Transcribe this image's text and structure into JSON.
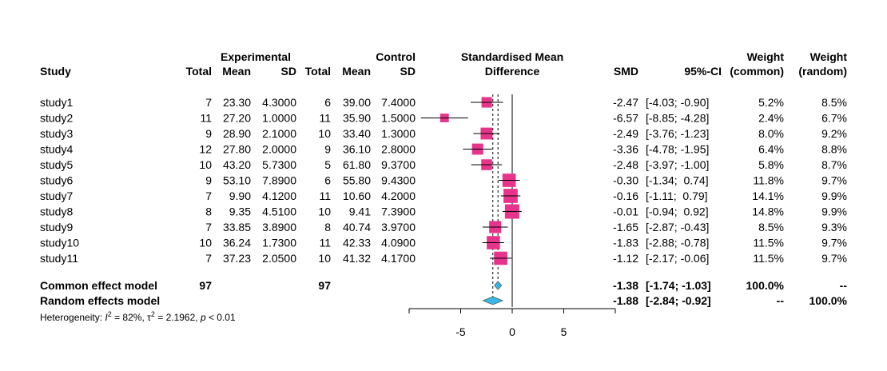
{
  "chart_data": {
    "type": "forest",
    "headers": {
      "study": "Study",
      "experimental": "Experimental",
      "control": "Control",
      "total": "Total",
      "mean": "Mean",
      "sd": "SD",
      "effect_line1": "Standardised Mean",
      "effect_line2": "Difference",
      "smd": "SMD",
      "ci": "95%-CI",
      "weight": "Weight",
      "weight_common": "(common)",
      "weight_random": "(random)"
    },
    "studies": [
      {
        "name": "study1",
        "exp_total": "7",
        "exp_mean": "23.30",
        "exp_sd": "4.3000",
        "ctl_total": "6",
        "ctl_mean": "39.00",
        "ctl_sd": "7.4000",
        "smd": -2.47,
        "lower": -4.03,
        "upper": -0.9,
        "ci_text": "[-4.03; -0.90]",
        "smd_text": "-2.47",
        "w_common": "5.2%",
        "w_random": "8.5%",
        "w_common_val": 5.2
      },
      {
        "name": "study2",
        "exp_total": "11",
        "exp_mean": "27.20",
        "exp_sd": "1.0000",
        "ctl_total": "11",
        "ctl_mean": "35.90",
        "ctl_sd": "1.5000",
        "smd": -6.57,
        "lower": -8.85,
        "upper": -4.28,
        "ci_text": "[-8.85; -4.28]",
        "smd_text": "-6.57",
        "w_common": "2.4%",
        "w_random": "6.7%",
        "w_common_val": 2.4
      },
      {
        "name": "study3",
        "exp_total": "9",
        "exp_mean": "28.90",
        "exp_sd": "2.1000",
        "ctl_total": "10",
        "ctl_mean": "33.40",
        "ctl_sd": "1.3000",
        "smd": -2.49,
        "lower": -3.76,
        "upper": -1.23,
        "ci_text": "[-3.76; -1.23]",
        "smd_text": "-2.49",
        "w_common": "8.0%",
        "w_random": "9.2%",
        "w_common_val": 8.0
      },
      {
        "name": "study4",
        "exp_total": "12",
        "exp_mean": "27.80",
        "exp_sd": "2.0000",
        "ctl_total": "9",
        "ctl_mean": "36.10",
        "ctl_sd": "2.8000",
        "smd": -3.36,
        "lower": -4.78,
        "upper": -1.95,
        "ci_text": "[-4.78; -1.95]",
        "smd_text": "-3.36",
        "w_common": "6.4%",
        "w_random": "8.8%",
        "w_common_val": 6.4
      },
      {
        "name": "study5",
        "exp_total": "10",
        "exp_mean": "43.20",
        "exp_sd": "5.7300",
        "ctl_total": "5",
        "ctl_mean": "61.80",
        "ctl_sd": "9.3700",
        "smd": -2.48,
        "lower": -3.97,
        "upper": -1.0,
        "ci_text": "[-3.97; -1.00]",
        "smd_text": "-2.48",
        "w_common": "5.8%",
        "w_random": "8.7%",
        "w_common_val": 5.8
      },
      {
        "name": "study6",
        "exp_total": "9",
        "exp_mean": "53.10",
        "exp_sd": "7.8900",
        "ctl_total": "6",
        "ctl_mean": "55.80",
        "ctl_sd": "9.4300",
        "smd": -0.3,
        "lower": -1.34,
        "upper": 0.74,
        "ci_text": "[-1.34;  0.74]",
        "smd_text": "-0.30",
        "w_common": "11.8%",
        "w_random": "9.7%",
        "w_common_val": 11.8
      },
      {
        "name": "study7",
        "exp_total": "7",
        "exp_mean": "9.90",
        "exp_sd": "4.1200",
        "ctl_total": "11",
        "ctl_mean": "10.60",
        "ctl_sd": "4.2000",
        "smd": -0.16,
        "lower": -1.11,
        "upper": 0.79,
        "ci_text": "[-1.11;  0.79]",
        "smd_text": "-0.16",
        "w_common": "14.1%",
        "w_random": "9.9%",
        "w_common_val": 14.1
      },
      {
        "name": "study8",
        "exp_total": "8",
        "exp_mean": "9.35",
        "exp_sd": "4.5100",
        "ctl_total": "10",
        "ctl_mean": "9.41",
        "ctl_sd": "7.3900",
        "smd": -0.01,
        "lower": -0.94,
        "upper": 0.92,
        "ci_text": "[-0.94;  0.92]",
        "smd_text": "-0.01",
        "w_common": "14.8%",
        "w_random": "9.9%",
        "w_common_val": 14.8
      },
      {
        "name": "study9",
        "exp_total": "7",
        "exp_mean": "33.85",
        "exp_sd": "3.8900",
        "ctl_total": "8",
        "ctl_mean": "40.74",
        "ctl_sd": "3.9700",
        "smd": -1.65,
        "lower": -2.87,
        "upper": -0.43,
        "ci_text": "[-2.87; -0.43]",
        "smd_text": "-1.65",
        "w_common": "8.5%",
        "w_random": "9.3%",
        "w_common_val": 8.5
      },
      {
        "name": "study10",
        "exp_total": "10",
        "exp_mean": "36.24",
        "exp_sd": "1.7300",
        "ctl_total": "11",
        "ctl_mean": "42.33",
        "ctl_sd": "4.0900",
        "smd": -1.83,
        "lower": -2.88,
        "upper": -0.78,
        "ci_text": "[-2.88; -0.78]",
        "smd_text": "-1.83",
        "w_common": "11.5%",
        "w_random": "9.7%",
        "w_common_val": 11.5
      },
      {
        "name": "study11",
        "exp_total": "7",
        "exp_mean": "37.23",
        "exp_sd": "2.0500",
        "ctl_total": "10",
        "ctl_mean": "41.32",
        "ctl_sd": "4.1700",
        "smd": -1.12,
        "lower": -2.17,
        "upper": -0.06,
        "ci_text": "[-2.17; -0.06]",
        "smd_text": "-1.12",
        "w_common": "11.5%",
        "w_random": "9.7%",
        "w_common_val": 11.5
      }
    ],
    "pooled": [
      {
        "model": "Common effect model",
        "exp_total": "97",
        "ctl_total": "97",
        "smd": -1.38,
        "lower": -1.74,
        "upper": -1.03,
        "smd_text": "-1.38",
        "ci_text": "[-1.74; -1.03]",
        "w_common": "100.0%",
        "w_random": "--",
        "color": "#36b9e6"
      },
      {
        "model": "Random effects model",
        "exp_total": "",
        "ctl_total": "",
        "smd": -1.88,
        "lower": -2.84,
        "upper": -0.92,
        "smd_text": "-1.88",
        "ci_text": "[-2.84; -0.92]",
        "w_common": "--",
        "w_random": "100.0%",
        "color": "#36b9e6"
      }
    ],
    "heterogeneity": {
      "prefix": "Heterogeneity: ",
      "i2_symbol": "I",
      "i2_sup": "2",
      "i2_value": " = 82%, ",
      "tau2_symbol": "τ",
      "tau2_sup": "2",
      "tau2_value": " = 2.1962, ",
      "p_symbol": "p",
      "p_value": " < 0.01"
    },
    "xaxis": {
      "range": [
        -10,
        10
      ],
      "ticks": [
        -5,
        0,
        5
      ],
      "tick_labels": [
        "-5",
        "0",
        "5"
      ]
    },
    "box_color": "#e8338a",
    "ci_line_color": "#000000"
  }
}
